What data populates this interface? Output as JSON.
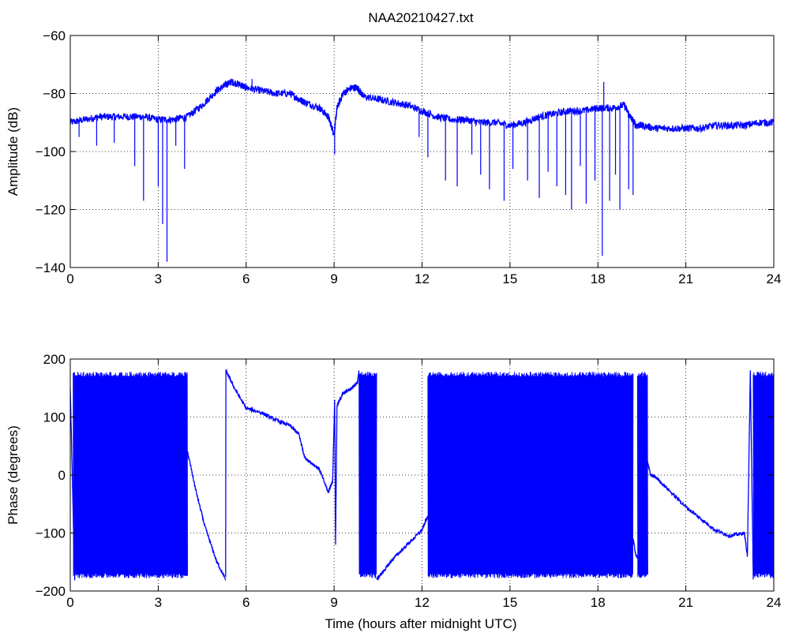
{
  "figure": {
    "title": "NAA20210427.txt",
    "colors": {
      "line": "#0000ff",
      "axes": "#000000",
      "grid": "#000000",
      "background": "#ffffff"
    }
  },
  "chart_data": [
    {
      "type": "line",
      "title": "NAA20210427.txt",
      "xlabel": "",
      "ylabel": "Amplitude (dB)",
      "xlim": [
        0,
        24
      ],
      "ylim": [
        -140,
        -60
      ],
      "xticks": [
        0,
        3,
        6,
        9,
        12,
        15,
        18,
        21,
        24
      ],
      "yticks": [
        -140,
        -120,
        -100,
        -80,
        -60
      ],
      "xtick_labels": [
        "0",
        "3",
        "6",
        "9",
        "12",
        "15",
        "18",
        "21",
        "24"
      ],
      "ytick_labels": [
        "−140",
        "−120",
        "−100",
        "−80",
        "−60"
      ],
      "grid": true,
      "series": [
        {
          "x": [
            0,
            0.5,
            1.0,
            1.5,
            2.0,
            2.5,
            3.0,
            3.5,
            4.0,
            4.5,
            5.0,
            5.3,
            5.5,
            5.8,
            6.0,
            6.5,
            7.0,
            7.5,
            7.8,
            8.0,
            8.5,
            8.8,
            9.0,
            9.1,
            9.3,
            9.6,
            9.8,
            10.0,
            10.5,
            11.0,
            11.5,
            12.0,
            12.5,
            13.0,
            13.5,
            14.0,
            14.5,
            15.0,
            15.5,
            16.0,
            16.5,
            17.0,
            17.5,
            18.0,
            18.5,
            18.9,
            19.1,
            19.3,
            19.5,
            20.0,
            20.5,
            21.0,
            21.5,
            22.0,
            22.5,
            23.0,
            23.5,
            24.0
          ],
          "y": [
            -90,
            -89,
            -88,
            -88,
            -88,
            -88,
            -89,
            -89,
            -88,
            -84,
            -79,
            -77,
            -76,
            -77,
            -78,
            -79,
            -80,
            -80,
            -82,
            -83,
            -85,
            -88,
            -94,
            -85,
            -80,
            -78,
            -78,
            -81,
            -82,
            -83,
            -84,
            -86,
            -88,
            -89,
            -89,
            -90,
            -90,
            -91,
            -90,
            -88,
            -87,
            -86,
            -86,
            -85,
            -85,
            -84,
            -88,
            -91,
            -91,
            -92,
            -92,
            -92,
            -92,
            -91,
            -91,
            -91,
            -90,
            -90
          ]
        }
      ],
      "spikes": [
        {
          "x": 0.3,
          "y": -95
        },
        {
          "x": 0.9,
          "y": -98
        },
        {
          "x": 1.5,
          "y": -97
        },
        {
          "x": 2.2,
          "y": -105
        },
        {
          "x": 2.5,
          "y": -117
        },
        {
          "x": 3.0,
          "y": -112
        },
        {
          "x": 3.15,
          "y": -125
        },
        {
          "x": 3.3,
          "y": -138
        },
        {
          "x": 3.6,
          "y": -98
        },
        {
          "x": 3.9,
          "y": -106
        },
        {
          "x": 9.02,
          "y": -101
        },
        {
          "x": 11.9,
          "y": -95
        },
        {
          "x": 12.2,
          "y": -102
        },
        {
          "x": 12.8,
          "y": -110
        },
        {
          "x": 13.2,
          "y": -112
        },
        {
          "x": 13.7,
          "y": -101
        },
        {
          "x": 14.0,
          "y": -108
        },
        {
          "x": 14.3,
          "y": -113
        },
        {
          "x": 14.8,
          "y": -117
        },
        {
          "x": 15.1,
          "y": -106
        },
        {
          "x": 15.6,
          "y": -110
        },
        {
          "x": 16.0,
          "y": -116
        },
        {
          "x": 16.3,
          "y": -107
        },
        {
          "x": 16.6,
          "y": -112
        },
        {
          "x": 16.9,
          "y": -115
        },
        {
          "x": 17.1,
          "y": -120
        },
        {
          "x": 17.4,
          "y": -105
        },
        {
          "x": 17.6,
          "y": -118
        },
        {
          "x": 17.9,
          "y": -110
        },
        {
          "x": 18.15,
          "y": -136
        },
        {
          "x": 18.4,
          "y": -117
        },
        {
          "x": 18.6,
          "y": -108
        },
        {
          "x": 18.75,
          "y": -120
        },
        {
          "x": 19.05,
          "y": -113
        },
        {
          "x": 19.2,
          "y": -115
        }
      ],
      "peaks": [
        {
          "x": 6.2,
          "y": -75
        },
        {
          "x": 18.2,
          "y": -76
        }
      ]
    },
    {
      "type": "line",
      "title": "",
      "xlabel": "Time (hours after midnight UTC)",
      "ylabel": "Phase (degrees)",
      "xlim": [
        0,
        24
      ],
      "ylim": [
        -200,
        200
      ],
      "xticks": [
        0,
        3,
        6,
        9,
        12,
        15,
        18,
        21,
        24
      ],
      "yticks": [
        -200,
        -100,
        0,
        100,
        200
      ],
      "xtick_labels": [
        "0",
        "3",
        "6",
        "9",
        "12",
        "15",
        "18",
        "21",
        "24"
      ],
      "ytick_labels": [
        "−200",
        "−100",
        "0",
        "100",
        "200"
      ],
      "grid": true,
      "wrapped_segments": [
        [
          0.1,
          4.0
        ],
        [
          9.85,
          10.45
        ],
        [
          12.2,
          19.2
        ],
        [
          19.35,
          19.7
        ],
        [
          23.3,
          24.0
        ]
      ],
      "series": [
        {
          "x": [
            0,
            0.15,
            0.3
          ],
          "y": [
            150,
            -180,
            20
          ]
        },
        {
          "x": [
            4.0,
            4.3,
            4.6,
            5.0,
            5.3
          ],
          "y": [
            40,
            -30,
            -90,
            -150,
            -180
          ]
        },
        {
          "x": [
            5.3,
            5.31,
            5.6,
            6.0,
            6.5,
            7.0,
            7.5,
            7.8,
            8.0,
            8.5,
            8.8,
            8.95,
            9.02,
            9.05,
            9.1,
            9.3,
            9.6,
            9.8,
            9.85
          ],
          "y": [
            -178,
            180,
            150,
            115,
            108,
            95,
            85,
            70,
            30,
            10,
            -30,
            -10,
            130,
            -120,
            120,
            140,
            150,
            160,
            180
          ]
        },
        {
          "x": [
            10.45,
            10.7,
            11.0,
            11.5,
            12.0,
            12.2
          ],
          "y": [
            -180,
            -165,
            -145,
            -120,
            -95,
            -70
          ]
        },
        {
          "x": [
            19.2,
            19.3,
            19.5,
            19.6,
            19.7
          ],
          "y": [
            -110,
            -140,
            -145,
            -150,
            -155
          ]
        },
        {
          "x": [
            19.7,
            19.8,
            20.0,
            20.5,
            21.0,
            21.5,
            22.0,
            22.5,
            23.0,
            23.1,
            23.2,
            23.3
          ],
          "y": [
            20,
            0,
            -5,
            -30,
            -55,
            -75,
            -95,
            -105,
            -100,
            -140,
            180,
            -180
          ]
        }
      ]
    }
  ]
}
